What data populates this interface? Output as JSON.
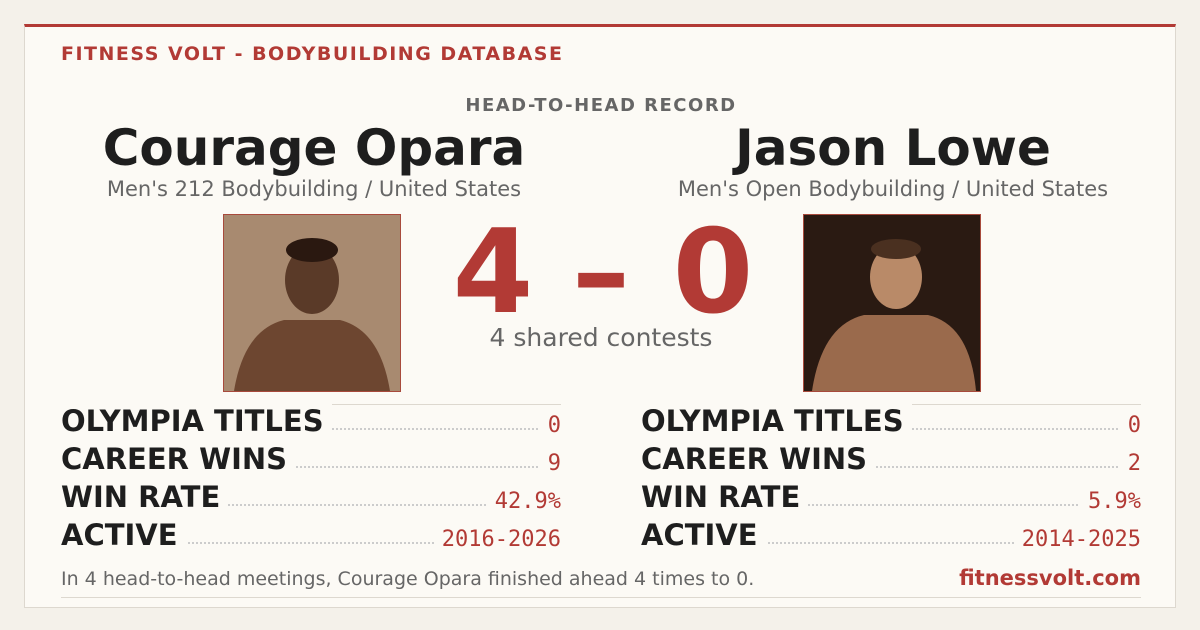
{
  "header": {
    "brand": "FITNESS VOLT - BODYBUILDING DATABASE",
    "subtitle": "HEAD-TO-HEAD RECORD"
  },
  "left": {
    "name": "Courage Opara",
    "division": "Men's 212 Bodybuilding / United States",
    "stats": [
      {
        "label": "OLYMPIA TITLES",
        "value": "0"
      },
      {
        "label": "CAREER WINS",
        "value": "9"
      },
      {
        "label": "WIN RATE",
        "value": "42.9%"
      },
      {
        "label": "ACTIVE",
        "value": "2016-2026"
      }
    ]
  },
  "right": {
    "name": "Jason Lowe",
    "division": "Men's Open Bodybuilding / United States",
    "stats": [
      {
        "label": "OLYMPIA TITLES",
        "value": "0"
      },
      {
        "label": "CAREER WINS",
        "value": "2"
      },
      {
        "label": "WIN RATE",
        "value": "5.9%"
      },
      {
        "label": "ACTIVE",
        "value": "2014-2025"
      }
    ]
  },
  "score": {
    "left": 4,
    "separator": "–",
    "right": 0,
    "caption": "4 shared contests"
  },
  "footer": {
    "summary": "In 4 head-to-head meetings, Courage Opara finished ahead 4 times to 0.",
    "site": "fitnessvolt.com"
  }
}
